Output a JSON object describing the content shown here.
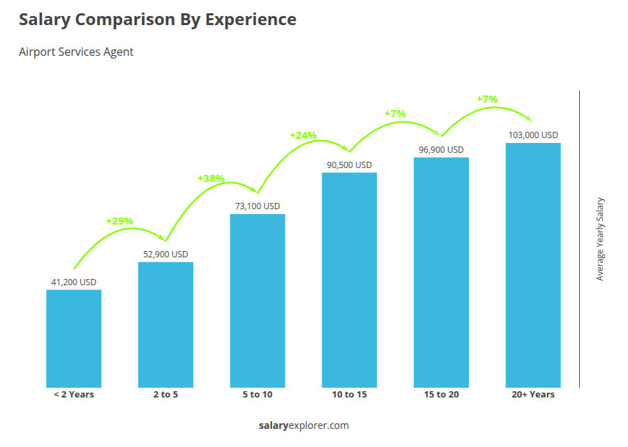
{
  "chart_data": {
    "type": "bar",
    "title": "Salary Comparison By Experience",
    "subtitle": "Airport Services Agent",
    "ylabel": "Average Yearly Salary",
    "categories": [
      "< 2 Years",
      "2 to 5",
      "5 to 10",
      "10 to 15",
      "15 to 20",
      "20+ Years"
    ],
    "values": [
      41200,
      52900,
      73100,
      90500,
      96900,
      103000
    ],
    "value_labels": [
      "41,200 USD",
      "52,900 USD",
      "73,100 USD",
      "90,500 USD",
      "96,900 USD",
      "103,000 USD"
    ],
    "data_labels": true,
    "color": "#3ab8e0",
    "ylim": [
      0,
      125000
    ],
    "grid": false,
    "tick_labels": "x",
    "annotations": {
      "texts": [
        "+29%",
        "+38%",
        "+24%",
        "+7%",
        "+7%"
      ],
      "color": "#88ff00"
    },
    "footer": [
      "salary",
      "explorer.com"
    ]
  }
}
